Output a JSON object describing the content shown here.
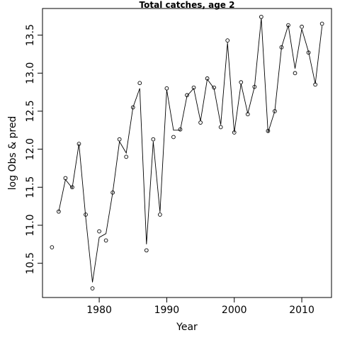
{
  "chart_data": {
    "type": "line",
    "title": "Total catches, age 2",
    "xlabel": "Year",
    "ylabel": "log Obs & pred",
    "xlim": [
      1971.6,
      2014.4
    ],
    "ylim": [
      10.05,
      13.85
    ],
    "x_ticks": [
      1980,
      1990,
      2000,
      2010
    ],
    "y_ticks": [
      10.5,
      11.0,
      11.5,
      12.0,
      12.5,
      13.0,
      13.5
    ],
    "x_tick_labels": [
      "1980",
      "1990",
      "2000",
      "2010"
    ],
    "y_tick_labels": [
      "10.5",
      "11.0",
      "11.5",
      "12.0",
      "12.5",
      "13.0",
      "13.5"
    ],
    "grid": false,
    "legend": "none",
    "series": [
      {
        "role": "observed",
        "style": "points",
        "x": [
          1973,
          1974,
          1975,
          1976,
          1977,
          1978,
          1979,
          1980,
          1981,
          1982,
          1983,
          1984,
          1985,
          1986,
          1987,
          1988,
          1989,
          1990,
          1991,
          1992,
          1993,
          1994,
          1995,
          1996,
          1997,
          1998,
          1999,
          2000,
          2001,
          2002,
          2003,
          2004,
          2005,
          2006,
          2007,
          2008,
          2009,
          2010,
          2011,
          2012,
          2013
        ],
        "y": [
          10.71,
          11.18,
          11.62,
          11.5,
          12.07,
          11.14,
          10.17,
          10.92,
          10.8,
          11.43,
          12.13,
          11.9,
          12.55,
          12.87,
          10.67,
          12.13,
          11.14,
          12.8,
          12.16,
          12.26,
          12.71,
          12.81,
          12.35,
          12.93,
          12.81,
          12.29,
          13.43,
          12.22,
          12.88,
          12.46,
          12.82,
          13.74,
          12.24,
          12.5,
          13.34,
          13.63,
          13.0,
          13.61,
          13.27,
          12.85,
          13.65
        ]
      },
      {
        "role": "predicted",
        "style": "line",
        "x": [
          1974,
          1975,
          1976,
          1977,
          1978,
          1979,
          1980,
          1981,
          1982,
          1983,
          1984,
          1985,
          1986,
          1987,
          1988,
          1989,
          1990,
          1991,
          1992,
          1993,
          1994,
          1995,
          1996,
          1997,
          1998,
          1999,
          2000,
          2001,
          2002,
          2003,
          2004,
          2005,
          2006,
          2007,
          2008,
          2009,
          2010,
          2011,
          2012,
          2013
        ],
        "y": [
          11.18,
          11.6,
          11.49,
          12.07,
          11.1,
          10.25,
          10.84,
          10.89,
          11.43,
          12.1,
          11.95,
          12.55,
          12.8,
          10.75,
          12.1,
          11.17,
          12.78,
          12.25,
          12.25,
          12.7,
          12.8,
          12.37,
          12.92,
          12.8,
          12.32,
          13.4,
          12.22,
          12.86,
          12.47,
          12.82,
          13.72,
          12.22,
          12.5,
          13.34,
          13.63,
          13.06,
          13.58,
          13.28,
          12.86,
          13.62
        ]
      }
    ]
  }
}
